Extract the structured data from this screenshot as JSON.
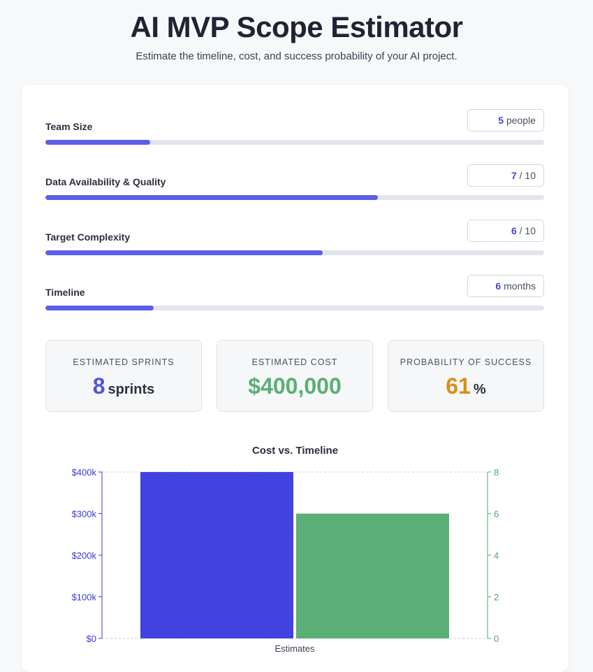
{
  "header": {
    "title": "AI MVP Scope Estimator",
    "subtitle": "Estimate the timeline, cost, and success probability of your AI project."
  },
  "controls": [
    {
      "label": "Team Size",
      "value": "5",
      "unit": "people",
      "fraction": 0.21
    },
    {
      "label": "Data Availability & Quality",
      "value": "7",
      "unit": "/ 10",
      "fraction": 0.667
    },
    {
      "label": "Target Complexity",
      "value": "6",
      "unit": "/ 10",
      "fraction": 0.556
    },
    {
      "label": "Timeline",
      "value": "6",
      "unit": "months",
      "fraction": 0.217
    }
  ],
  "stats": [
    {
      "label": "ESTIMATED SPRINTS",
      "value": "8",
      "unit": "sprints",
      "color": "#5355d9"
    },
    {
      "label": "ESTIMATED COST",
      "value": "$400,000",
      "unit": "",
      "color": "#5aaf74"
    },
    {
      "label": "PROBABILITY OF SUCCESS",
      "value": "61",
      "unit": "%",
      "color": "#d98e1a"
    }
  ],
  "chart_data": {
    "type": "bar",
    "title": "Cost vs. Timeline",
    "categories": [
      "Estimates"
    ],
    "xlabel": "Estimates",
    "series": [
      {
        "name": "",
        "axis": "left",
        "value": 400000,
        "color": "#4242e0"
      },
      {
        "name": "",
        "axis": "right",
        "value": 6,
        "color": "#5aaf77"
      }
    ],
    "y_left": {
      "ylim": [
        0,
        400000
      ],
      "ticks": [
        "$0",
        "$100k",
        "$200k",
        "$300k",
        "$400k"
      ],
      "color": "#3a3ad4"
    },
    "y_right": {
      "ylim": [
        0,
        8
      ],
      "ticks": [
        "0",
        "2",
        "4",
        "6",
        "8"
      ],
      "color": "#4ea86b"
    },
    "grid": true
  }
}
